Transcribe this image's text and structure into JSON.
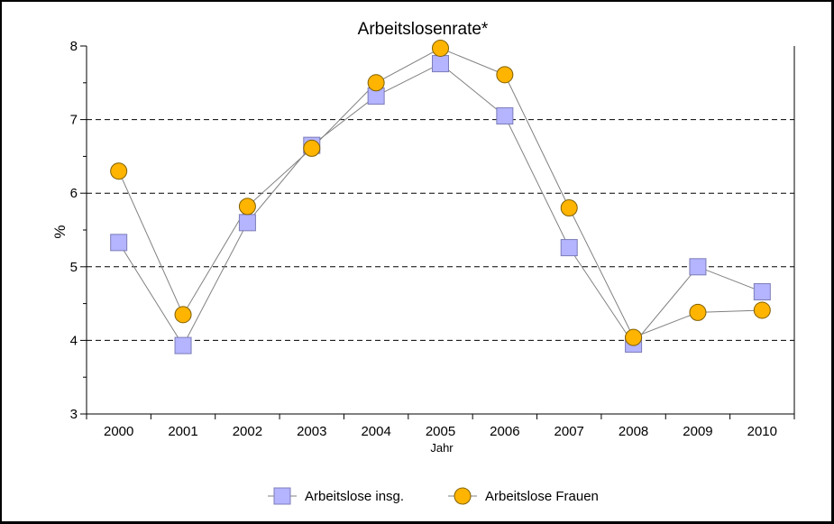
{
  "chart_data": {
    "type": "line",
    "title": "Arbeitslosenrate*",
    "xlabel": "Jahr",
    "ylabel": "%",
    "categories": [
      "2000",
      "2001",
      "2002",
      "2003",
      "2004",
      "2005",
      "2006",
      "2007",
      "2008",
      "2009",
      "2010"
    ],
    "ylim": [
      3,
      8
    ],
    "yticks": [
      "3",
      "4",
      "5",
      "6",
      "7",
      "8"
    ],
    "grid": "horizontal dashed",
    "legend_position": "bottom",
    "series": [
      {
        "name": "Arbeitslose insg.",
        "marker": "square",
        "color": "#b4b4ff",
        "values": [
          5.33,
          3.93,
          5.6,
          6.65,
          7.32,
          7.76,
          7.05,
          5.26,
          3.95,
          5.0,
          4.66
        ]
      },
      {
        "name": "Arbeitslose Frauen",
        "marker": "circle",
        "color": "#ffb400",
        "values": [
          6.3,
          4.35,
          5.82,
          6.61,
          7.5,
          7.97,
          7.61,
          5.8,
          4.04,
          4.38,
          4.41
        ]
      }
    ]
  }
}
